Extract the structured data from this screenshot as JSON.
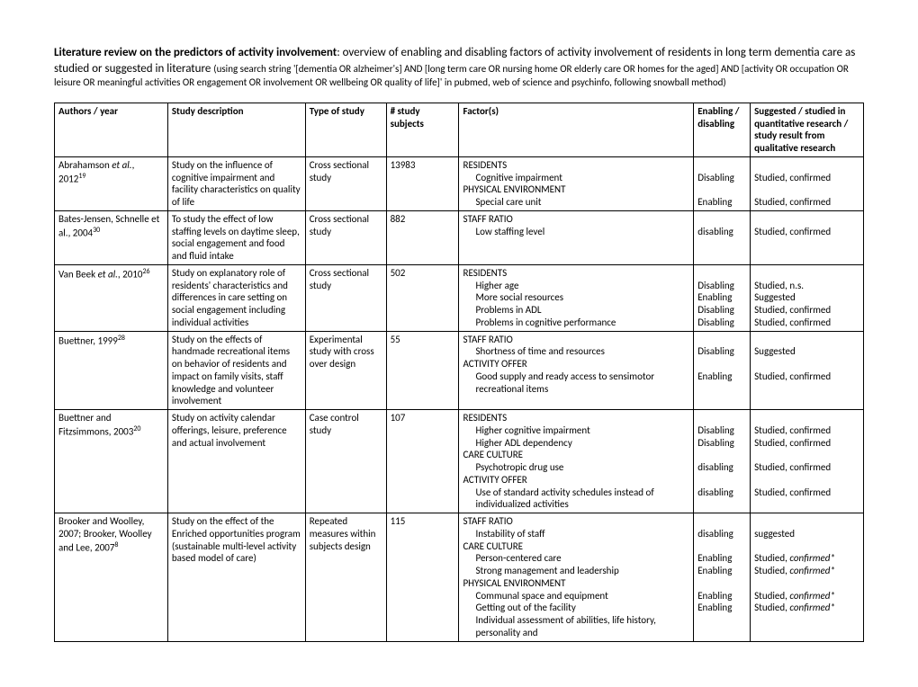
{
  "header": {
    "title_bold": "Literature review on the predictors of activity involvement",
    "title_rest": ": overview of enabling and disabling factors of activity involvement of residents in long term dementia care as studied or suggested in literature ",
    "parenthetical": "(using search string '[dementia OR alzheimer's] AND [long term care OR nursing home OR elderly care OR homes for the aged] AND [activity OR occupation OR leisure OR meaningful activities OR engagement OR involvement OR wellbeing OR quality of life]' in pubmed, web of science and psychinfo, following snowball method)"
  },
  "columns": {
    "authors": "Authors / year",
    "desc": "Study description",
    "type": "Type of study",
    "n": "# study subjects",
    "factor": "Factor(s)",
    "enab": "Enabling / disabling",
    "sug": "Suggested / studied in quantitative research / study result from qualitative research"
  },
  "rows": [
    {
      "authors_html": "Abrahamson <span class='ital'>et al.</span>, 2012<span class='ref'>19</span>",
      "desc": "Study on the influence of cognitive impairment and facility characteristics on quality of life",
      "type": "Cross sectional study",
      "n": "13983",
      "factors": [
        {
          "cat": "RESIDENTS"
        },
        {
          "sub": "Cognitive impairment",
          "enab": "Disabling",
          "sug": "Studied, confirmed"
        },
        {
          "cat": "PHYSICAL ENVIRONMENT"
        },
        {
          "sub": "Special care unit",
          "enab": "Enabling",
          "sug": "Studied, confirmed"
        }
      ]
    },
    {
      "authors_html": "Bates-Jensen, Schnelle et al., 2004<span class='ref'>30</span>",
      "desc": "To study the effect of low staffing levels on daytime sleep, social engagement and food and fluid intake",
      "type": "Cross sectional study",
      "n": "882",
      "factors": [
        {
          "cat": "STAFF RATIO"
        },
        {
          "sub": "Low staffing level",
          "enab": "disabling",
          "sug": "Studied, confirmed"
        }
      ]
    },
    {
      "authors_html": "Van Beek <span class='ital'>et al.</span>, 2010<span class='ref'>26</span>",
      "desc": "Study on explanatory role of residents' characteristics and differences in care setting on social engagement including individual activities",
      "type": "Cross sectional study",
      "n": "502",
      "factors": [
        {
          "cat": "RESIDENTS"
        },
        {
          "sub": "Higher age",
          "enab": "Disabling",
          "sug": "Studied, n.s."
        },
        {
          "sub": "More social resources",
          "enab": "Enabling",
          "sug": "Suggested"
        },
        {
          "sub": "Problems in ADL",
          "enab": "Disabling",
          "sug": "Studied, confirmed"
        },
        {
          "sub": "Problems in cognitive performance",
          "enab": "Disabling",
          "sug": "Studied, confirmed"
        }
      ]
    },
    {
      "authors_html": "Buettner, 1999<span class='ref'>28</span>",
      "desc": "Study on the effects of handmade recreational items on behavior of residents and impact on family visits, staff knowledge and volunteer involvement",
      "type": "Experimental study with cross over design",
      "n": "55",
      "factors": [
        {
          "cat": "STAFF RATIO"
        },
        {
          "sub": "Shortness of time and resources",
          "enab": "Disabling",
          "sug": "Suggested"
        },
        {
          "cat": "ACTIVITY OFFER"
        },
        {
          "sub": "Good supply and ready access to sensimotor recreational items",
          "enab": "Enabling",
          "sug": "Studied, confirmed"
        }
      ]
    },
    {
      "authors_html": "Buettner and Fitzsimmons, 2003<span class='ref'>20</span>",
      "desc": "Study on activity calendar offerings, leisure, preference and actual involvement",
      "type": "Case control study",
      "n": "107",
      "factors": [
        {
          "cat": "RESIDENTS"
        },
        {
          "sub": "Higher cognitive impairment",
          "enab": "Disabling",
          "sug": "Studied, confirmed"
        },
        {
          "sub": "Higher ADL dependency",
          "enab": "Disabling",
          "sug": "Studied, confirmed"
        },
        {
          "cat": "CARE CULTURE"
        },
        {
          "sub": "Psychotropic drug use",
          "enab": "disabling",
          "sug": "Studied, confirmed"
        },
        {
          "cat": "ACTIVITY OFFER"
        },
        {
          "sub": "Use of standard activity schedules instead of individualized activities",
          "enab": "disabling",
          "sug": "Studied, confirmed"
        }
      ]
    },
    {
      "authors_html": "Brooker and Woolley, 2007; Brooker, Woolley and Lee, 2007<span class='ref'>8</span>",
      "desc": "Study on the effect of the Enriched opportunities program (sustainable multi-level activity based model of care)",
      "type": "Repeated measures within subjects design",
      "n": "115",
      "factors": [
        {
          "cat": "STAFF RATIO"
        },
        {
          "sub": "Instability of staff",
          "enab": "disabling",
          "sug": "suggested"
        },
        {
          "cat": "CARE CULTURE"
        },
        {
          "sub": "Person-centered care",
          "enab": "Enabling",
          "sug_html": "Studied, <span class='ital'>confirmed*</span>"
        },
        {
          "sub": "Strong management and leadership",
          "enab": "Enabling",
          "sug_html": "Studied, <span class='ital'>confirmed*</span>"
        },
        {
          "cat": "PHYSICAL ENVIRONMENT"
        },
        {
          "sub": "Communal space and equipment",
          "enab": "Enabling",
          "sug_html": "Studied, <span class='ital'>confirmed*</span>"
        },
        {
          "sub": "Getting out of the facility",
          "enab": "Enabling",
          "sug_html": "Studied, <span class='ital'>confirmed*</span>"
        },
        {
          "sub": "Individual assessment of abilities, life history, personality and"
        }
      ]
    }
  ]
}
